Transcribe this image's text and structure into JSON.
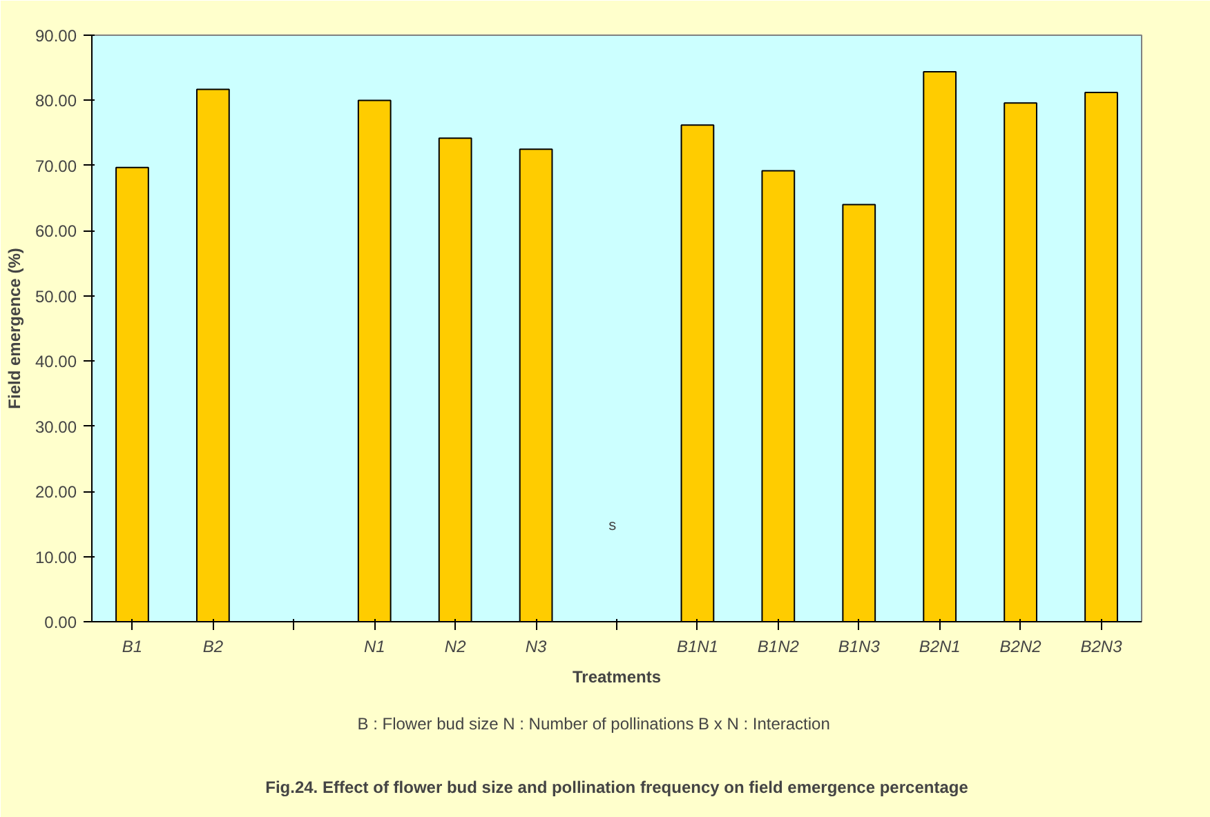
{
  "chart_data": {
    "type": "bar",
    "title": "Fig.24. Effect of flower bud size and pollination frequency on field emergence percentage",
    "xlabel": "Treatments",
    "ylabel": "Field emergence (%)",
    "categories": [
      "B1",
      "B2",
      null,
      "N1",
      "N2",
      "N3",
      null,
      "B1N1",
      "B1N2",
      "B1N3",
      "B2N1",
      "B2N2",
      "B2N3"
    ],
    "values": [
      69.7,
      81.7,
      null,
      80.0,
      74.2,
      72.5,
      null,
      76.2,
      69.2,
      64.0,
      84.4,
      79.6,
      81.2
    ],
    "color": "#ffcc00",
    "ylim": [
      0,
      90
    ],
    "yticks": [
      {
        "value": 0,
        "label": "0.00"
      },
      {
        "value": 10,
        "label": "10.00"
      },
      {
        "value": 20,
        "label": "20.00"
      },
      {
        "value": 30,
        "label": "30.00"
      },
      {
        "value": 40,
        "label": "40.00"
      },
      {
        "value": 50,
        "label": "50.00"
      },
      {
        "value": 60,
        "label": "60.00"
      },
      {
        "value": 70,
        "label": "70.00"
      },
      {
        "value": 80,
        "label": "80.00"
      },
      {
        "value": 90,
        "label": "90.00"
      }
    ],
    "grid": false,
    "annotations": [
      "s",
      "B : Flower bud size      N : Number of pollinations      B x N : Interaction"
    ]
  }
}
